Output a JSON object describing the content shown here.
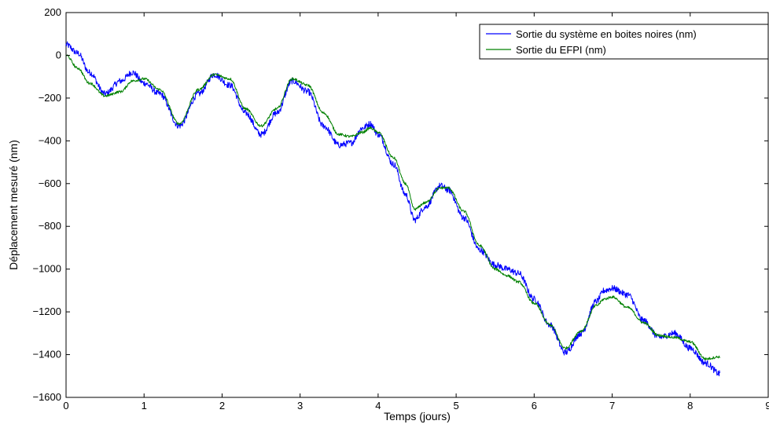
{
  "chart_data": {
    "type": "line",
    "title": "",
    "xlabel": "Temps (jours)",
    "ylabel": "Déplacement mesuré (nm)",
    "xlim": [
      0,
      9
    ],
    "ylim": [
      -1600,
      200
    ],
    "xticks": [
      0,
      1,
      2,
      3,
      4,
      5,
      6,
      7,
      8,
      9
    ],
    "yticks": [
      200,
      0,
      -200,
      -400,
      -600,
      -800,
      -1000,
      -1200,
      -1400,
      -1600
    ],
    "xtick_labels": [
      "0",
      "1",
      "2",
      "3",
      "4",
      "5",
      "6",
      "7",
      "8",
      "9"
    ],
    "ytick_labels": [
      "200",
      "0",
      "−200",
      "−400",
      "−600",
      "−800",
      "−1000",
      "−1200",
      "−1400",
      "−1600"
    ],
    "grid": false,
    "legend_position": "top-right",
    "series": [
      {
        "name": "Sortie du système en boites noires (nm)",
        "color": "#0000ff",
        "noise_amplitude": 15,
        "x": [
          0,
          0.15,
          0.3,
          0.5,
          0.7,
          0.85,
          1.0,
          1.2,
          1.45,
          1.7,
          1.9,
          2.1,
          2.3,
          2.5,
          2.7,
          2.9,
          3.1,
          3.3,
          3.5,
          3.65,
          3.8,
          3.9,
          4.0,
          4.2,
          4.35,
          4.47,
          4.6,
          4.8,
          4.9,
          5.1,
          5.3,
          5.5,
          5.65,
          5.8,
          6.0,
          6.2,
          6.4,
          6.6,
          6.8,
          6.9,
          7.0,
          7.2,
          7.4,
          7.6,
          7.8,
          8.0,
          8.2,
          8.38
        ],
        "y": [
          50,
          10,
          -80,
          -180,
          -120,
          -80,
          -130,
          -180,
          -330,
          -180,
          -90,
          -140,
          -270,
          -370,
          -270,
          -120,
          -170,
          -330,
          -420,
          -410,
          -340,
          -320,
          -370,
          -510,
          -650,
          -770,
          -710,
          -610,
          -630,
          -760,
          -910,
          -980,
          -1000,
          -1020,
          -1140,
          -1260,
          -1390,
          -1300,
          -1150,
          -1100,
          -1090,
          -1120,
          -1240,
          -1320,
          -1300,
          -1370,
          -1440,
          -1490
        ]
      },
      {
        "name": "Sortie du EFPI (nm)",
        "color": "#008000",
        "noise_amplitude": 6,
        "x": [
          0,
          0.15,
          0.3,
          0.5,
          0.7,
          0.85,
          1.0,
          1.2,
          1.45,
          1.7,
          1.9,
          2.1,
          2.3,
          2.5,
          2.7,
          2.9,
          3.1,
          3.3,
          3.5,
          3.65,
          3.8,
          3.9,
          4.0,
          4.2,
          4.35,
          4.47,
          4.6,
          4.8,
          4.9,
          5.1,
          5.3,
          5.5,
          5.65,
          5.8,
          6.0,
          6.2,
          6.4,
          6.6,
          6.8,
          6.9,
          7.0,
          7.2,
          7.4,
          7.6,
          7.8,
          8.0,
          8.2,
          8.38
        ],
        "y": [
          0,
          -60,
          -130,
          -190,
          -170,
          -120,
          -110,
          -160,
          -320,
          -160,
          -90,
          -110,
          -250,
          -330,
          -250,
          -110,
          -140,
          -270,
          -370,
          -380,
          -360,
          -340,
          -360,
          -480,
          -600,
          -720,
          -690,
          -620,
          -620,
          -730,
          -890,
          -1000,
          -1030,
          -1060,
          -1160,
          -1260,
          -1370,
          -1290,
          -1170,
          -1140,
          -1130,
          -1180,
          -1250,
          -1310,
          -1320,
          -1340,
          -1420,
          -1410
        ]
      }
    ]
  }
}
